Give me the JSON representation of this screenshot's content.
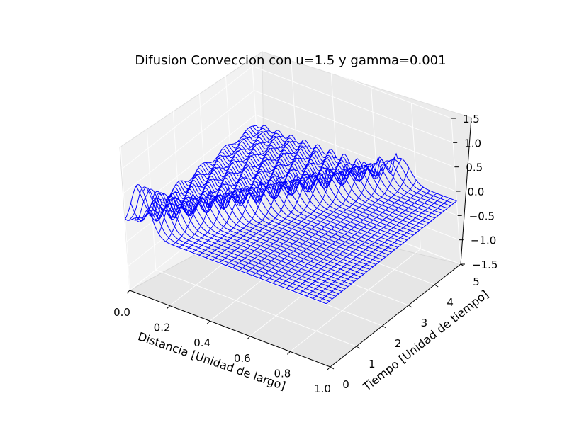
{
  "chart_data": {
    "type": "surface-wireframe-3d",
    "title": "Difusion Conveccion con u=1.5 y gamma=0.001",
    "xlabel": "Distancia [Unidad de largo]",
    "ylabel": "Tiempo [Unidad de tiempo]",
    "zlabel": "",
    "xlim": [
      0.0,
      1.0
    ],
    "ylim": [
      0,
      5
    ],
    "zlim": [
      -1.5,
      1.5
    ],
    "x_ticks": [
      "0.0",
      "0.2",
      "0.4",
      "0.6",
      "0.8",
      "1.0"
    ],
    "y_ticks": [
      "0",
      "1",
      "2",
      "3",
      "4",
      "5"
    ],
    "z_ticks": [
      "1.5",
      "1.0",
      "0.5",
      "0.0",
      "−0.5",
      "−1.0",
      "−1.5"
    ],
    "color": "#0000ff",
    "grid": true,
    "description_of_series": "wireframe of field value over distance and time; initial hump near x=0 that is convected toward x=1 while numerical oscillations appear near the front"
  }
}
